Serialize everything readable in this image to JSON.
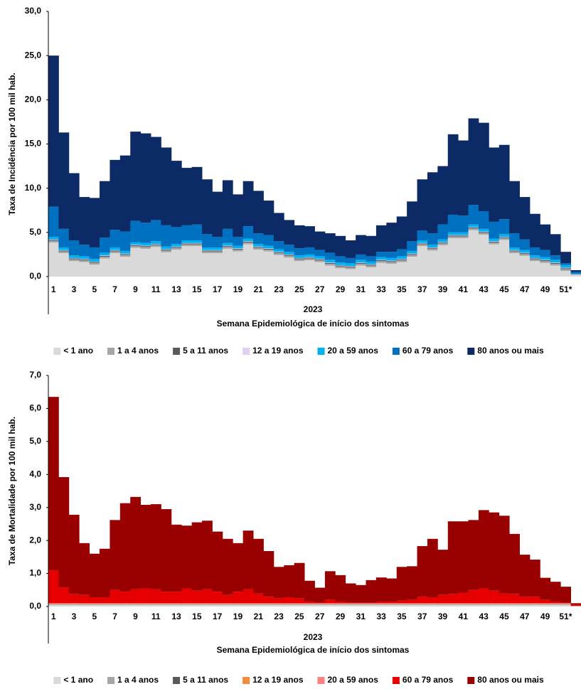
{
  "chart_data": [
    {
      "type": "bar",
      "stacked": true,
      "ylabel": "Taxa de Incidência por 100 mil hab.",
      "x_group_label": "2023",
      "xlabel": "Semana Epidemiológica de início dos sintomas",
      "legend": "bottom",
      "grid": false,
      "ylim": [
        0,
        30
      ],
      "yticks": [
        {
          "value": 0,
          "label": "0,0"
        },
        {
          "value": 5,
          "label": "5,0"
        },
        {
          "value": 10,
          "label": "10,0"
        },
        {
          "value": 15,
          "label": "15,0"
        },
        {
          "value": 20,
          "label": "20,0"
        },
        {
          "value": 25,
          "label": "25,0"
        },
        {
          "value": 30,
          "label": "30,0"
        }
      ],
      "categories": [
        "1",
        null,
        "3",
        null,
        "5",
        null,
        "7",
        null,
        "9",
        null,
        "11",
        null,
        "13",
        null,
        "15",
        null,
        "17",
        null,
        "19",
        null,
        "21",
        null,
        "23",
        null,
        "25",
        null,
        "27",
        null,
        "29",
        null,
        "31",
        null,
        "33",
        null,
        "35",
        null,
        "37",
        null,
        "39",
        null,
        "41",
        null,
        "43",
        null,
        "45",
        null,
        "47",
        null,
        "49",
        null,
        "51*",
        null
      ],
      "series": [
        {
          "name": "< 1 ano",
          "color": "#d9d9d9",
          "values": [
            3.85,
            2.65,
            1.75,
            1.65,
            1.35,
            2.05,
            2.65,
            2.25,
            3.25,
            3.15,
            3.35,
            2.75,
            3.05,
            3.45,
            3.45,
            2.65,
            2.65,
            3.15,
            2.85,
            3.65,
            3.05,
            2.85,
            2.45,
            2.15,
            1.75,
            1.85,
            1.65,
            1.25,
            0.95,
            0.85,
            1.25,
            1.05,
            1.55,
            1.45,
            1.65,
            2.25,
            3.45,
            2.95,
            3.55,
            4.35,
            4.35,
            5.25,
            4.75,
            3.65,
            4.15,
            2.65,
            2.35,
            1.75,
            1.55,
            1.25,
            0.65,
            0.2
          ]
        },
        {
          "name": "1 a 4 anos",
          "color": "#a6a6a6",
          "values": [
            0.2,
            0.2,
            0.2,
            0.2,
            0.2,
            0.2,
            0.2,
            0.2,
            0.2,
            0.2,
            0.2,
            0.2,
            0.2,
            0.2,
            0.2,
            0.2,
            0.2,
            0.2,
            0.2,
            0.2,
            0.2,
            0.2,
            0.2,
            0.2,
            0.2,
            0.2,
            0.2,
            0.2,
            0.2,
            0.2,
            0.2,
            0.2,
            0.2,
            0.2,
            0.2,
            0.2,
            0.2,
            0.2,
            0.2,
            0.2,
            0.2,
            0.2,
            0.2,
            0.2,
            0.2,
            0.2,
            0.2,
            0.2,
            0.2,
            0.2,
            0.2,
            0.05
          ]
        },
        {
          "name": "5 a 11 anos",
          "color": "#595959",
          "values": [
            0.1,
            0.1,
            0.1,
            0.1,
            0.1,
            0.1,
            0.1,
            0.1,
            0.1,
            0.1,
            0.1,
            0.1,
            0.1,
            0.1,
            0.1,
            0.1,
            0.1,
            0.1,
            0.1,
            0.1,
            0.1,
            0.1,
            0.1,
            0.1,
            0.1,
            0.1,
            0.1,
            0.1,
            0.1,
            0.1,
            0.1,
            0.1,
            0.1,
            0.1,
            0.1,
            0.1,
            0.1,
            0.1,
            0.1,
            0.1,
            0.1,
            0.1,
            0.1,
            0.1,
            0.1,
            0.1,
            0.1,
            0.1,
            0.1,
            0.1,
            0.1,
            0.02
          ]
        },
        {
          "name": "12 a 19 anos",
          "color": "#e3cff2",
          "values": [
            0.05,
            0.05,
            0.05,
            0.05,
            0.05,
            0.05,
            0.05,
            0.05,
            0.05,
            0.05,
            0.05,
            0.05,
            0.05,
            0.05,
            0.05,
            0.05,
            0.05,
            0.05,
            0.05,
            0.05,
            0.05,
            0.05,
            0.05,
            0.05,
            0.05,
            0.05,
            0.05,
            0.05,
            0.05,
            0.05,
            0.05,
            0.05,
            0.05,
            0.05,
            0.05,
            0.05,
            0.05,
            0.05,
            0.05,
            0.05,
            0.05,
            0.05,
            0.05,
            0.05,
            0.05,
            0.05,
            0.05,
            0.05,
            0.05,
            0.05,
            0.05,
            0.01
          ]
        },
        {
          "name": "20 a 59 anos",
          "color": "#00b0f0",
          "values": [
            0.3,
            0.3,
            0.3,
            0.3,
            0.3,
            0.3,
            0.3,
            0.3,
            0.3,
            0.3,
            0.3,
            0.3,
            0.3,
            0.3,
            0.3,
            0.3,
            0.3,
            0.3,
            0.3,
            0.3,
            0.3,
            0.3,
            0.3,
            0.3,
            0.3,
            0.3,
            0.3,
            0.3,
            0.3,
            0.3,
            0.3,
            0.3,
            0.3,
            0.3,
            0.3,
            0.3,
            0.3,
            0.3,
            0.3,
            0.3,
            0.3,
            0.3,
            0.3,
            0.3,
            0.3,
            0.3,
            0.3,
            0.3,
            0.3,
            0.3,
            0.3,
            0.05
          ]
        },
        {
          "name": "60 a 79 anos",
          "color": "#0070c0",
          "values": [
            3.4,
            2.1,
            1.7,
            1.3,
            1.3,
            1.7,
            2.0,
            2.2,
            2.4,
            2.3,
            2.4,
            2.4,
            1.9,
            1.7,
            1.8,
            1.5,
            1.2,
            1.6,
            1.0,
            1.4,
            1.2,
            1.2,
            0.9,
            0.8,
            0.8,
            0.8,
            0.7,
            0.8,
            0.7,
            0.6,
            0.6,
            0.6,
            0.6,
            0.7,
            0.8,
            1.1,
            1.1,
            1.3,
            1.7,
            2.0,
            1.9,
            2.2,
            2.0,
            1.9,
            1.7,
            1.6,
            1.2,
            0.9,
            0.8,
            0.5,
            0.2,
            0.2
          ]
        },
        {
          "name": "80 anos ou mais",
          "color": "#0c2a66",
          "values": [
            17.1,
            10.9,
            7.6,
            5.4,
            5.6,
            6.4,
            7.9,
            8.6,
            10.1,
            10.1,
            9.4,
            8.8,
            7.5,
            6.5,
            6.5,
            6.2,
            5.1,
            5.5,
            4.8,
            5.1,
            4.8,
            3.9,
            3.2,
            2.8,
            2.6,
            2.4,
            2.1,
            2.2,
            2.3,
            2.0,
            2.2,
            2.3,
            3.0,
            3.3,
            3.7,
            4.5,
            5.8,
            6.9,
            6.6,
            9.1,
            8.5,
            9.8,
            10.0,
            8.4,
            8.4,
            5.9,
            4.8,
            3.8,
            2.9,
            2.4,
            1.3,
            0.2
          ]
        }
      ]
    },
    {
      "type": "bar",
      "stacked": true,
      "ylabel": "Taxa de Mortalidade por 100 mil hab.",
      "x_group_label": "2023",
      "xlabel": "Semana Epidemiológica de início dos sintomas",
      "legend": "bottom",
      "grid": false,
      "ylim": [
        0,
        7
      ],
      "yticks": [
        {
          "value": 0,
          "label": "0,0"
        },
        {
          "value": 1,
          "label": "1,0"
        },
        {
          "value": 2,
          "label": "2,0"
        },
        {
          "value": 3,
          "label": "3,0"
        },
        {
          "value": 4,
          "label": "4,0"
        },
        {
          "value": 5,
          "label": "5,0"
        },
        {
          "value": 6,
          "label": "6,0"
        },
        {
          "value": 7,
          "label": "7,0"
        }
      ],
      "categories": [
        "1",
        null,
        "3",
        null,
        "5",
        null,
        "7",
        null,
        "9",
        null,
        "11",
        null,
        "13",
        null,
        "15",
        null,
        "17",
        null,
        "19",
        null,
        "21",
        null,
        "23",
        null,
        "25",
        null,
        "27",
        null,
        "29",
        null,
        "31",
        null,
        "33",
        null,
        "35",
        null,
        "37",
        null,
        "39",
        null,
        "41",
        null,
        "43",
        null,
        "45",
        null,
        "47",
        null,
        "49",
        null,
        "51*",
        null
      ],
      "series": [
        {
          "name": "< 1 ano",
          "color": "#d9d9d9",
          "values": [
            0.05,
            0.05,
            0.05,
            0.05,
            0.05,
            0.05,
            0.05,
            0.05,
            0.05,
            0.05,
            0.05,
            0.05,
            0.05,
            0.05,
            0.05,
            0.05,
            0.05,
            0.05,
            0.05,
            0.05,
            0.05,
            0.05,
            0.05,
            0.05,
            0.05,
            0.05,
            0.05,
            0.05,
            0.05,
            0.05,
            0.05,
            0.05,
            0.05,
            0.05,
            0.05,
            0.05,
            0.05,
            0.05,
            0.05,
            0.05,
            0.05,
            0.05,
            0.05,
            0.05,
            0.05,
            0.05,
            0.05,
            0.05,
            0.05,
            0.05,
            0.05,
            0.01
          ]
        },
        {
          "name": "1 a 4 anos",
          "color": "#a6a6a6",
          "values": [
            0.01,
            0.01,
            0.01,
            0.01,
            0.01,
            0.01,
            0.01,
            0.01,
            0.01,
            0.01,
            0.01,
            0.01,
            0.01,
            0.01,
            0.01,
            0.01,
            0.01,
            0.01,
            0.01,
            0.01,
            0.01,
            0.01,
            0.01,
            0.01,
            0.01,
            0.01,
            0.01,
            0.01,
            0.01,
            0.01,
            0.01,
            0.01,
            0.01,
            0.01,
            0.01,
            0.01,
            0.01,
            0.01,
            0.01,
            0.01,
            0.01,
            0.01,
            0.01,
            0.01,
            0.01,
            0.01,
            0.01,
            0.01,
            0.01,
            0.01,
            0.01,
            0
          ]
        },
        {
          "name": "5 a 11 anos",
          "color": "#595959",
          "values": [
            0.01,
            0.01,
            0.01,
            0.01,
            0.01,
            0.01,
            0.01,
            0.01,
            0.01,
            0.01,
            0.01,
            0.01,
            0.01,
            0.01,
            0.01,
            0.01,
            0.01,
            0.01,
            0.01,
            0.01,
            0.01,
            0.01,
            0.01,
            0.01,
            0.01,
            0.01,
            0.01,
            0.01,
            0.01,
            0.01,
            0.01,
            0.01,
            0.01,
            0.01,
            0.01,
            0.01,
            0.01,
            0.01,
            0.01,
            0.01,
            0.01,
            0.01,
            0.01,
            0.01,
            0.01,
            0.01,
            0.01,
            0.01,
            0.01,
            0.01,
            0.01,
            0
          ]
        },
        {
          "name": "12 a 19 anos",
          "color": "#f28b3c",
          "values": [
            0.01,
            0.01,
            0.01,
            0.01,
            0.01,
            0.01,
            0.01,
            0.01,
            0.01,
            0.01,
            0.01,
            0.01,
            0.01,
            0.01,
            0.01,
            0.01,
            0.01,
            0.01,
            0.01,
            0.01,
            0.01,
            0.01,
            0.01,
            0.01,
            0.01,
            0.01,
            0.01,
            0.01,
            0.01,
            0.01,
            0.01,
            0.01,
            0.01,
            0.01,
            0.01,
            0.01,
            0.01,
            0.01,
            0.01,
            0.01,
            0.01,
            0.01,
            0.01,
            0.01,
            0.01,
            0.01,
            0.01,
            0.01,
            0.01,
            0.01,
            0.01,
            0
          ]
        },
        {
          "name": "20 a 59 anos",
          "color": "#ff7f7f",
          "values": [
            0.02,
            0.02,
            0.02,
            0.02,
            0.02,
            0.02,
            0.02,
            0.02,
            0.02,
            0.02,
            0.02,
            0.02,
            0.02,
            0.02,
            0.02,
            0.02,
            0.02,
            0.02,
            0.02,
            0.02,
            0.02,
            0.02,
            0.02,
            0.02,
            0.02,
            0.02,
            0.02,
            0.02,
            0.02,
            0.02,
            0.02,
            0.02,
            0.02,
            0.02,
            0.02,
            0.02,
            0.02,
            0.02,
            0.02,
            0.02,
            0.02,
            0.02,
            0.02,
            0.02,
            0.02,
            0.02,
            0.02,
            0.02,
            0.02,
            0.02,
            0.02,
            0.01
          ]
        },
        {
          "name": "60 a 79 anos",
          "color": "#e60000",
          "values": [
            1.0,
            0.48,
            0.28,
            0.25,
            0.18,
            0.18,
            0.4,
            0.35,
            0.42,
            0.45,
            0.42,
            0.35,
            0.35,
            0.45,
            0.38,
            0.42,
            0.35,
            0.25,
            0.35,
            0.42,
            0.3,
            0.2,
            0.15,
            0.18,
            0.15,
            0.05,
            0.02,
            0.1,
            0.05,
            0.02,
            0.02,
            0.02,
            0.05,
            0.05,
            0.08,
            0.1,
            0.2,
            0.18,
            0.25,
            0.28,
            0.32,
            0.4,
            0.45,
            0.38,
            0.3,
            0.28,
            0.2,
            0.2,
            0.1,
            0.05,
            0.02,
            0.03
          ]
        },
        {
          "name": "80 anos ou mais",
          "color": "#990000",
          "values": [
            5.25,
            3.34,
            2.4,
            1.57,
            1.32,
            1.47,
            2.12,
            2.68,
            2.8,
            2.53,
            2.58,
            2.5,
            2.03,
            1.9,
            2.07,
            2.08,
            1.82,
            1.7,
            1.47,
            1.78,
            1.65,
            1.38,
            0.95,
            0.97,
            1.07,
            0.63,
            0.45,
            0.87,
            0.8,
            0.58,
            0.53,
            0.68,
            0.73,
            0.7,
            1.02,
            1.02,
            1.53,
            1.77,
            1.37,
            2.2,
            2.16,
            2.12,
            2.37,
            2.37,
            2.35,
            1.82,
            1.27,
            1.12,
            0.67,
            0.6,
            0.48,
            0.05
          ]
        }
      ]
    }
  ]
}
